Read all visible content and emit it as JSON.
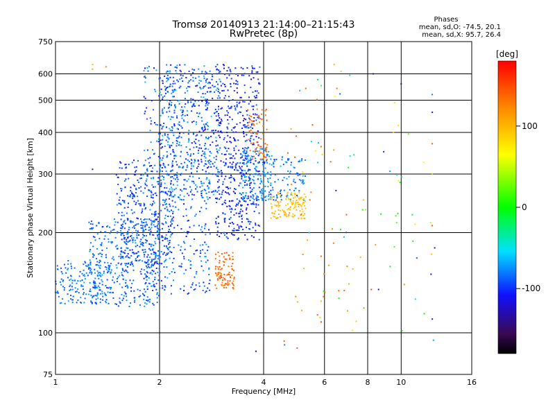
{
  "chart_data": {
    "type": "scatter",
    "title": "Tromsø 20140913 21:14:00–21:15:43",
    "subtitle": "RwPretec (8p)",
    "xlabel": "Frequency [MHz]",
    "ylabel": "Stationary phase Virtual Height [km]",
    "x_scale": "log",
    "y_scale": "log",
    "xlim": [
      1,
      16
    ],
    "ylim": [
      75,
      750
    ],
    "x_ticks": [
      1,
      2,
      4,
      6,
      8,
      10,
      16
    ],
    "x_tick_labels": [
      "1",
      "2",
      "4",
      "6",
      "8",
      "10",
      "16"
    ],
    "x_gridlines": [
      2,
      4,
      6,
      8,
      10
    ],
    "y_ticks": [
      75,
      100,
      200,
      300,
      400,
      500,
      600,
      750
    ],
    "y_tick_labels": [
      "75",
      "100",
      "200",
      "300",
      "400",
      "500",
      "600",
      "750"
    ],
    "y_gridlines": [
      100,
      200,
      300,
      400,
      500,
      600
    ],
    "grid": true,
    "stats": {
      "heading": "Phases",
      "line_o": "mean, sd,O: -74.5, 20.1",
      "line_x": "mean, sd,X:  95.7, 26.4"
    },
    "colorbar": {
      "label": "[deg]",
      "range": [
        -180,
        180
      ],
      "ticks": [
        100,
        0,
        -100
      ],
      "tick_labels": [
        "100",
        "0",
        "-100"
      ],
      "colormap": "rainbow"
    },
    "clusters": [
      {
        "x_range": [
          1.0,
          1.45
        ],
        "y_range": [
          122,
          165
        ],
        "phase_range": [
          -95,
          -65
        ],
        "count": 180
      },
      {
        "x_range": [
          1.25,
          2.0
        ],
        "y_range": [
          120,
          220
        ],
        "phase_range": [
          -100,
          -70
        ],
        "count": 380
      },
      {
        "x_range": [
          1.5,
          2.2
        ],
        "y_range": [
          160,
          330
        ],
        "phase_range": [
          -110,
          -70
        ],
        "count": 360
      },
      {
        "x_range": [
          1.8,
          2.8
        ],
        "y_range": [
          130,
          640
        ],
        "phase_range": [
          -115,
          -65
        ],
        "count": 480
      },
      {
        "x_range": [
          2.0,
          3.0
        ],
        "y_range": [
          250,
          620
        ],
        "phase_range": [
          -115,
          -60
        ],
        "count": 380
      },
      {
        "x_range": [
          2.9,
          3.9
        ],
        "y_range": [
          190,
          640
        ],
        "phase_range": [
          -120,
          -85
        ],
        "count": 520
      },
      {
        "x_range": [
          3.4,
          4.2
        ],
        "y_range": [
          250,
          360
        ],
        "phase_range": [
          -85,
          -65
        ],
        "count": 140
      },
      {
        "x_range": [
          2.9,
          3.3
        ],
        "y_range": [
          135,
          175
        ],
        "phase_range": [
          120,
          150
        ],
        "count": 90
      },
      {
        "x_range": [
          3.6,
          4.1
        ],
        "y_range": [
          330,
          470
        ],
        "phase_range": [
          120,
          150
        ],
        "count": 70
      },
      {
        "x_range": [
          4.2,
          5.3
        ],
        "y_range": [
          220,
          265
        ],
        "phase_range": [
          85,
          105
        ],
        "count": 130
      },
      {
        "x_range": [
          3.9,
          5.3
        ],
        "y_range": [
          250,
          340
        ],
        "phase_range": [
          -100,
          -60
        ],
        "count": 110
      },
      {
        "x_range": [
          4.5,
          7.0
        ],
        "y_range": [
          85,
          600
        ],
        "phase_range": [
          100,
          150
        ],
        "count": 35
      },
      {
        "x_range": [
          5.0,
          12.5
        ],
        "y_range": [
          100,
          600
        ],
        "phase_range": [
          -120,
          130
        ],
        "count": 60
      }
    ],
    "points": [
      {
        "x": 1.28,
        "y": 640,
        "phase": 100
      },
      {
        "x": 1.28,
        "y": 620,
        "phase": 110
      },
      {
        "x": 1.4,
        "y": 630,
        "phase": 130
      },
      {
        "x": 1.28,
        "y": 310,
        "phase": -120
      },
      {
        "x": 6.4,
        "y": 640,
        "phase": 100
      },
      {
        "x": 6.7,
        "y": 610,
        "phase": 90
      },
      {
        "x": 8.3,
        "y": 600,
        "phase": -120
      },
      {
        "x": 10.0,
        "y": 560,
        "phase": -130
      },
      {
        "x": 12.3,
        "y": 520,
        "phase": -80
      },
      {
        "x": 12.3,
        "y": 460,
        "phase": -110
      },
      {
        "x": 12.3,
        "y": 370,
        "phase": 140
      },
      {
        "x": 12.3,
        "y": 300,
        "phase": 100
      },
      {
        "x": 12.5,
        "y": 180,
        "phase": -120
      },
      {
        "x": 12.3,
        "y": 110,
        "phase": -120
      },
      {
        "x": 12.4,
        "y": 95,
        "phase": -70
      },
      {
        "x": 5.0,
        "y": 90,
        "phase": 140
      },
      {
        "x": 4.6,
        "y": 92,
        "phase": -80
      },
      {
        "x": 3.8,
        "y": 88,
        "phase": -120
      },
      {
        "x": 8.2,
        "y": 135,
        "phase": 150
      },
      {
        "x": 8.6,
        "y": 135,
        "phase": -120
      },
      {
        "x": 9.5,
        "y": 400,
        "phase": 90
      },
      {
        "x": 9.8,
        "y": 420,
        "phase": 80
      },
      {
        "x": 8.9,
        "y": 350,
        "phase": -100
      },
      {
        "x": 12.2,
        "y": 150,
        "phase": -110
      },
      {
        "x": 12.3,
        "y": 210,
        "phase": 140
      }
    ]
  }
}
